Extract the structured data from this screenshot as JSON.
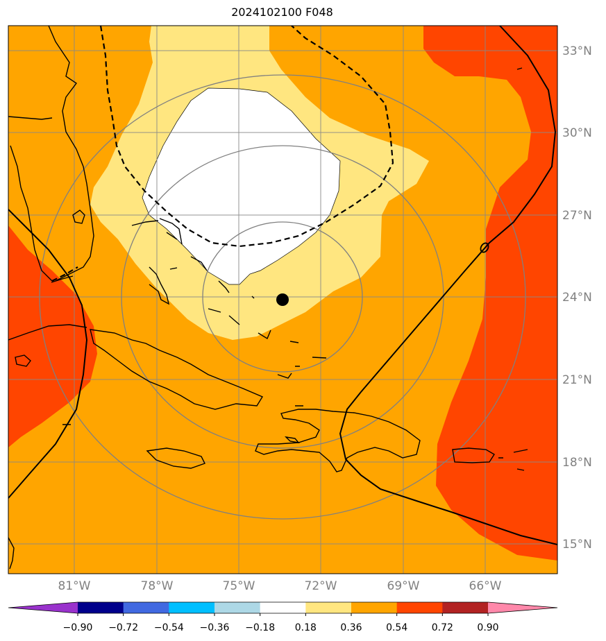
{
  "title": "2024102100 F048",
  "lat_labels": [
    "33°N",
    "30°N",
    "27°N",
    "24°N",
    "21°N",
    "18°N",
    "15°N"
  ],
  "lon_labels": [
    "81°W",
    "78°W",
    "75°W",
    "72°W",
    "69°W",
    "66°W"
  ],
  "colorbar": {
    "labels": [
      "−0.90",
      "−0.72",
      "−0.54",
      "−0.36",
      "−0.18",
      "0.18",
      "0.36",
      "0.54",
      "0.72",
      "0.90"
    ],
    "colors": [
      "#9932cc",
      "#00008b",
      "#4169e1",
      "#00bfff",
      "#add8e6",
      "#ffffff",
      "#ffe680",
      "#ffa500",
      "#ff4500",
      "#b22222",
      "#ff88aa"
    ]
  },
  "fill_colors": {
    "white": "#ffffff",
    "light_yellow": "#ffe680",
    "orange": "#ffa500",
    "red_orange": "#ff4500"
  },
  "storm_center": {
    "lon": -73.5,
    "lat": 23.9
  }
}
